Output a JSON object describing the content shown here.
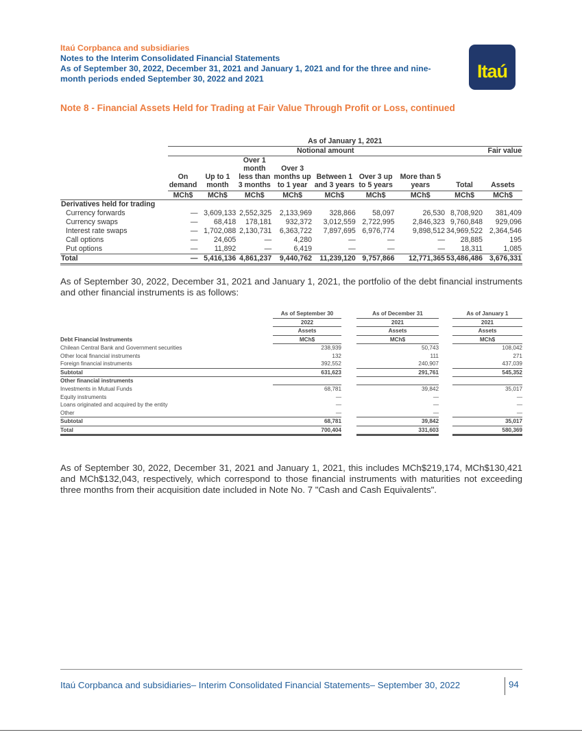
{
  "header": {
    "company": "Itaú Corpbanca and subsidiaries",
    "subtitle": "Notes to the Interim Consolidated Financial Statements",
    "period": "As of September 30, 2022, December 31, 2021 and January 1, 2021 and for the three and nine-month periods ended September 30, 2022 and 2021",
    "logo_text": "Itaú",
    "brand_colors": {
      "orange": "#ec7a3c",
      "blue": "#1f5c99",
      "logo_bg": "#21386b",
      "logo_text": "#f3e600"
    }
  },
  "note_title": "Note 8 - Financial Assets Held for Trading at Fair Value Through Profit or Loss, continued",
  "table1": {
    "date_header": "As of January 1, 2021",
    "group_notional": "Notional amount",
    "group_fair": "Fair value",
    "columns": [
      "On demand",
      "Up to 1 month",
      "Over 1 month less than 3 months",
      "Over 3 months up to 1 year",
      "Between 1 and 3 years",
      "Over 3 up to 5 years",
      "More than 5 years",
      "Total",
      "Assets"
    ],
    "units": [
      "MCh$",
      "MCh$",
      "MCh$",
      "MCh$",
      "MCh$",
      "MCh$",
      "MCh$",
      "MCh$",
      "MCh$"
    ],
    "section": "Derivatives held for trading",
    "rows": [
      {
        "label": "Currency forwards",
        "values": [
          "—",
          "3,609,133",
          "2,552,325",
          "2,133,969",
          "328,866",
          "58,097",
          "26,530",
          "8,708,920",
          "381,409"
        ]
      },
      {
        "label": "Currency swaps",
        "values": [
          "—",
          "68,418",
          "178,181",
          "932,372",
          "3,012,559",
          "2,722,995",
          "2,846,323",
          "9,760,848",
          "929,096"
        ]
      },
      {
        "label": "Interest rate swaps",
        "values": [
          "—",
          "1,702,088",
          "2,130,731",
          "6,363,722",
          "7,897,695",
          "6,976,774",
          "9,898,512",
          "34,969,522",
          "2,364,546"
        ]
      },
      {
        "label": "Call options",
        "values": [
          "—",
          "24,605",
          "—",
          "4,280",
          "—",
          "—",
          "—",
          "28,885",
          "195"
        ]
      },
      {
        "label": "Put options",
        "values": [
          "—",
          "11,892",
          "—",
          "6,419",
          "—",
          "—",
          "—",
          "18,311",
          "1,085"
        ]
      }
    ],
    "total": {
      "label": "Total",
      "values": [
        "—",
        "5,416,136",
        "4,861,237",
        "9,440,762",
        "11,239,120",
        "9,757,866",
        "12,771,365",
        "53,486,486",
        "3,676,331"
      ]
    }
  },
  "paragraph1": "As of September 30, 2022, December 31, 2021 and January 1, 2021, the portfolio of the debt financial instruments and other financial instruments is as follows:",
  "table2": {
    "columns": [
      {
        "date": "As of September 30",
        "year": "2022",
        "type": "Assets",
        "unit": "MCh$"
      },
      {
        "date": "As of December 31",
        "year": "2021",
        "type": "Assets",
        "unit": "MCh$"
      },
      {
        "date": "As of January 1",
        "year": "2021",
        "type": "Assets",
        "unit": "MCh$"
      }
    ],
    "section1": "Debt Financial Instruments",
    "rows1": [
      {
        "label": "Chilean Central Bank and Government securities",
        "values": [
          "238,939",
          "50,743",
          "108,042"
        ]
      },
      {
        "label": "Other local financial instruments",
        "values": [
          "132",
          "111",
          "271"
        ]
      },
      {
        "label": "Foreign financial instruments",
        "values": [
          "392,552",
          "240,907",
          "437,039"
        ]
      }
    ],
    "subtotal1": {
      "label": "Subtotal",
      "values": [
        "631,623",
        "291,761",
        "545,352"
      ]
    },
    "section2": "Other financial instruments",
    "rows2": [
      {
        "label": "Investments in Mutual Funds",
        "values": [
          "68,781",
          "39,842",
          "35,017"
        ]
      },
      {
        "label": "Equity instruments",
        "values": [
          "—",
          "—",
          "—"
        ]
      },
      {
        "label": "Loans originated and acquired by the entity",
        "values": [
          "—",
          "—",
          "—"
        ]
      },
      {
        "label": "Other",
        "values": [
          "—",
          "—",
          "—"
        ]
      }
    ],
    "subtotal2": {
      "label": "Subtotal",
      "values": [
        "68,781",
        "39,842",
        "35,017"
      ]
    },
    "total": {
      "label": "Total",
      "values": [
        "700,404",
        "331,603",
        "580,369"
      ]
    }
  },
  "paragraph2": "As of September 30, 2022, December 31, 2021 and January 1, 2021, this includes MCh$219,174, MCh$130,421 and MCh$132,043, respectively, which correspond to those financial instruments with maturities not exceeding three months from their acquisition date included in Note No. 7 \"Cash and Cash Equivalents\".",
  "footer": {
    "text": "Itaú Corpbanca and subsidiaries– Interim Consolidated Financial Statements– September 30, 2022",
    "page": "94"
  }
}
